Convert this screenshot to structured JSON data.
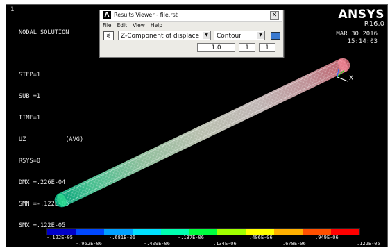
{
  "graphics": {
    "window_number": "1",
    "info_lines": [
      "NODAL SOLUTION",
      "",
      "STEP=1",
      "SUB =1",
      "TIME=1",
      "UZ           (AVG)",
      "RSYS=0",
      "DMX =.226E-04",
      "SMN =-.122E-05",
      "SMX =.122E-05"
    ],
    "brand": "ANSYS",
    "version": "R16.0",
    "date": "MAR 30 2016",
    "time": "15:14:03",
    "axis_label": "X"
  },
  "colorbar": {
    "colors": [
      "#0000c8",
      "#0048ff",
      "#00a0ff",
      "#00e0ff",
      "#00ffb0",
      "#00ff40",
      "#a0ff00",
      "#ffff00",
      "#ffb000",
      "#ff5000",
      "#ff0000"
    ],
    "top_labels": [
      "-.122E-05",
      "-.681E-06",
      "-.137E-06",
      ".406E-06",
      ".949E-06"
    ],
    "bottom_labels": [
      "-.952E-06",
      "-.409E-06",
      ".134E-06",
      ".678E-06",
      ".122E-05"
    ]
  },
  "dialog": {
    "logo": "Λ",
    "title": "Results Viewer - file.rst",
    "close": "✕",
    "menus": [
      "File",
      "Edit",
      "View",
      "Help"
    ],
    "result_select": "Z-Component of displace",
    "plot_select": "Contour",
    "values": [
      "1.0",
      "1",
      "1"
    ]
  }
}
